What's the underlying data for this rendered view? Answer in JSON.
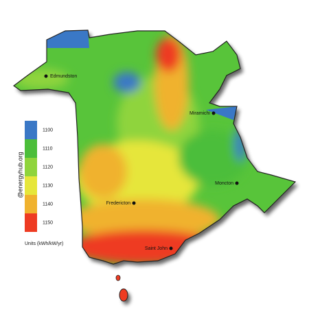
{
  "map": {
    "cities": [
      {
        "name": "Edmundston"
      },
      {
        "name": "Miramichi"
      },
      {
        "name": "Moncton"
      },
      {
        "name": "Fredericton"
      },
      {
        "name": "Saint John"
      }
    ]
  },
  "legend": {
    "items": [
      {
        "value": 1100,
        "color": "#3a78c6"
      },
      {
        "value": 1110,
        "color": "#4cbe3a"
      },
      {
        "value": 1120,
        "color": "#8fd43c"
      },
      {
        "value": 1130,
        "color": "#e6e63a"
      },
      {
        "value": 1140,
        "color": "#f0b22e"
      },
      {
        "value": 1150,
        "color": "#ee3b22"
      }
    ],
    "units": "Units (kWh/kW/yr)",
    "credit": "@energyhub.org"
  }
}
